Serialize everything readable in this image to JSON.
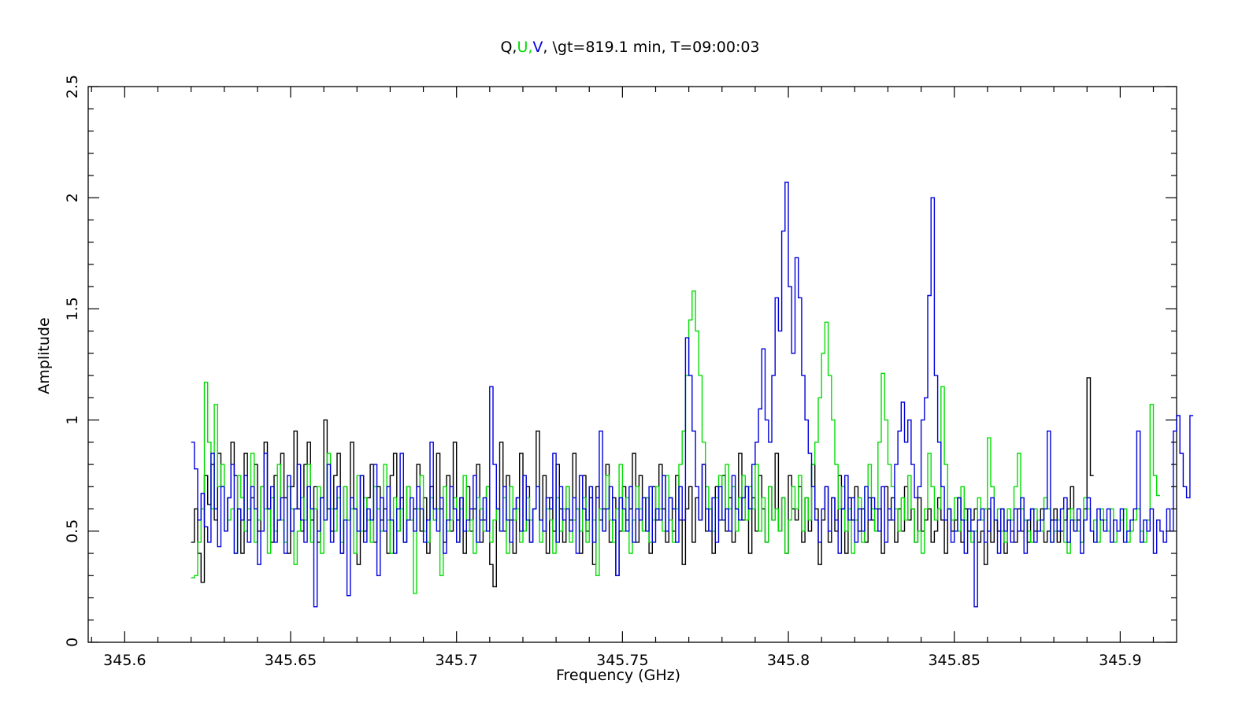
{
  "chart_data": {
    "type": "line",
    "title_parts": [
      {
        "text": "Q,",
        "color": "#000000"
      },
      {
        "text": "U,",
        "color": "#00dd00"
      },
      {
        "text": "V",
        "color": "#0000dd"
      },
      {
        "text": ", \\gt=819.1 min, T=09:00:03",
        "color": "#000000"
      }
    ],
    "xlabel": "Frequency (GHz)",
    "ylabel": "Amplitude",
    "xlim": [
      345.589,
      345.917
    ],
    "ylim": [
      0,
      2.5
    ],
    "x_ticks": [
      345.6,
      345.65,
      345.7,
      345.75,
      345.8,
      345.85,
      345.9
    ],
    "x_tick_labels": [
      "345.6",
      "345.65",
      "345.7",
      "345.75",
      "345.8",
      "345.85",
      "345.9"
    ],
    "y_ticks": [
      0,
      0.5,
      1,
      1.5,
      2,
      2.5
    ],
    "y_tick_labels": [
      "0",
      "0.5",
      "1",
      "1.5",
      "2",
      "2.5"
    ],
    "x_start": 345.62,
    "x_step": 0.001,
    "series": [
      {
        "name": "Q",
        "color": "#000000",
        "values": [
          0.45,
          0.6,
          0.4,
          0.27,
          0.75,
          0.62,
          0.8,
          0.55,
          0.85,
          0.7,
          0.5,
          0.65,
          0.9,
          0.75,
          0.6,
          0.4,
          0.85,
          0.55,
          0.65,
          0.8,
          0.5,
          0.7,
          0.9,
          0.6,
          0.45,
          0.75,
          0.55,
          0.85,
          0.65,
          0.4,
          0.7,
          0.95,
          0.6,
          0.5,
          0.8,
          0.9,
          0.55,
          0.7,
          0.45,
          0.65,
          1.0,
          0.6,
          0.5,
          0.75,
          0.85,
          0.4,
          0.7,
          0.55,
          0.9,
          0.6,
          0.35,
          0.75,
          0.5,
          0.65,
          0.8,
          0.45,
          0.7,
          0.55,
          0.6,
          0.4,
          0.75,
          0.85,
          0.5,
          0.65,
          0.45,
          0.7,
          0.55,
          0.6,
          0.8,
          0.5,
          0.65,
          0.4,
          0.7,
          0.55,
          0.85,
          0.6,
          0.45,
          0.75,
          0.5,
          0.9,
          0.55,
          0.65,
          0.4,
          0.7,
          0.5,
          0.6,
          0.8,
          0.45,
          0.55,
          0.7,
          0.35,
          0.25,
          0.6,
          0.9,
          0.5,
          0.75,
          0.55,
          0.4,
          0.65,
          0.85,
          0.5,
          0.7,
          0.45,
          0.6,
          0.95,
          0.55,
          0.75,
          0.4,
          0.65,
          0.5,
          0.8,
          0.6,
          0.45,
          0.7,
          0.55,
          0.85,
          0.6,
          0.4,
          0.75,
          0.5,
          0.65,
          0.35,
          0.7,
          0.55,
          0.6,
          0.8,
          0.45,
          0.65,
          0.3,
          0.5,
          0.7,
          0.55,
          0.6,
          0.85,
          0.45,
          0.75,
          0.5,
          0.65,
          0.4,
          0.7,
          0.55,
          0.8,
          0.6,
          0.45,
          0.65,
          0.5,
          0.75,
          0.55,
          0.35,
          0.6,
          0.7,
          0.45,
          0.65,
          0.55,
          0.8,
          0.5,
          0.6,
          0.4,
          0.7,
          0.55,
          0.75,
          0.5,
          0.65,
          0.45,
          0.6,
          0.85,
          0.55,
          0.7,
          0.4,
          0.65,
          0.5,
          0.75,
          0.6,
          0.45,
          0.7,
          0.55,
          0.85,
          0.5,
          0.65,
          0.4,
          0.75,
          0.6,
          0.55,
          0.7,
          0.45,
          0.65,
          0.5,
          0.8,
          0.6,
          0.35,
          0.55,
          0.7,
          0.45,
          0.65,
          0.5,
          0.75,
          0.6,
          0.4,
          0.65,
          0.55,
          0.7,
          0.5,
          0.6,
          0.45,
          0.65,
          0.55,
          0.5,
          0.6,
          0.4,
          0.7,
          0.55,
          0.65,
          0.45,
          0.6,
          0.5,
          0.7,
          0.55,
          0.6,
          0.45,
          0.65,
          0.5,
          0.55,
          0.6,
          0.45,
          0.5,
          0.65,
          0.55,
          0.4,
          0.6,
          0.5,
          0.55,
          0.65,
          0.45,
          0.6,
          0.5,
          0.55,
          0.6,
          0.45,
          0.5,
          0.35,
          0.6,
          0.45,
          0.55,
          0.5,
          0.6,
          0.4,
          0.55,
          0.5,
          0.45,
          0.6,
          0.5,
          0.55,
          0.45,
          0.6,
          0.5,
          0.55,
          0.6,
          0.45,
          0.5,
          0.55,
          0.6,
          0.45,
          0.5,
          0.55,
          0.6,
          0.7,
          0.5,
          0.55,
          0.45,
          0.6,
          1.19,
          0.75
        ]
      },
      {
        "name": "U",
        "color": "#00dd00",
        "values": [
          0.29,
          0.3,
          0.45,
          0.6,
          1.17,
          0.9,
          0.6,
          1.07,
          0.7,
          0.8,
          0.5,
          0.55,
          0.6,
          0.4,
          0.75,
          0.65,
          0.5,
          0.6,
          0.85,
          0.45,
          0.55,
          0.7,
          0.6,
          0.4,
          0.65,
          0.5,
          0.8,
          0.55,
          0.45,
          0.7,
          0.6,
          0.35,
          0.5,
          0.65,
          0.55,
          0.8,
          0.45,
          0.6,
          0.7,
          0.4,
          0.55,
          0.85,
          0.6,
          0.5,
          0.65,
          0.45,
          0.7,
          0.55,
          0.6,
          0.4,
          0.75,
          0.5,
          0.65,
          0.55,
          0.45,
          0.7,
          0.6,
          0.5,
          0.8,
          0.55,
          0.4,
          0.65,
          0.5,
          0.6,
          0.45,
          0.7,
          0.55,
          0.22,
          0.6,
          0.75,
          0.5,
          0.45,
          0.65,
          0.55,
          0.6,
          0.3,
          0.7,
          0.5,
          0.55,
          0.65,
          0.45,
          0.6,
          0.75,
          0.5,
          0.55,
          0.4,
          0.65,
          0.6,
          0.5,
          0.7,
          0.45,
          0.55,
          0.6,
          0.5,
          0.65,
          0.4,
          0.7,
          0.55,
          0.6,
          0.45,
          0.5,
          0.65,
          0.55,
          0.6,
          0.7,
          0.45,
          0.5,
          0.6,
          0.55,
          0.4,
          0.65,
          0.5,
          0.6,
          0.7,
          0.45,
          0.55,
          0.6,
          0.5,
          0.65,
          0.45,
          0.7,
          0.55,
          0.3,
          0.6,
          0.5,
          0.75,
          0.55,
          0.45,
          0.6,
          0.8,
          0.5,
          0.65,
          0.4,
          0.55,
          0.7,
          0.6,
          0.5,
          0.65,
          0.45,
          0.55,
          0.7,
          0.6,
          0.5,
          0.75,
          0.55,
          0.45,
          0.6,
          0.8,
          0.95,
          1.2,
          1.45,
          1.58,
          1.4,
          1.2,
          0.9,
          0.7,
          0.6,
          0.5,
          0.65,
          0.75,
          0.55,
          0.8,
          0.6,
          0.7,
          0.5,
          0.65,
          0.75,
          0.55,
          0.7,
          0.6,
          0.8,
          0.5,
          0.65,
          0.45,
          0.7,
          0.55,
          0.6,
          0.5,
          0.65,
          0.4,
          0.55,
          0.7,
          0.6,
          0.75,
          0.5,
          0.65,
          0.55,
          0.8,
          0.9,
          1.1,
          1.3,
          1.44,
          1.2,
          1.0,
          0.8,
          0.6,
          0.7,
          0.5,
          0.6,
          0.4,
          0.55,
          0.65,
          0.45,
          0.7,
          0.8,
          0.6,
          0.5,
          0.9,
          1.21,
          1.0,
          0.8,
          0.7,
          0.6,
          0.5,
          0.65,
          0.55,
          0.75,
          0.6,
          0.45,
          0.5,
          0.4,
          0.6,
          0.85,
          0.7,
          0.55,
          0.6,
          1.15,
          0.8,
          0.6,
          0.55,
          0.65,
          0.5,
          0.7,
          0.55,
          0.6,
          0.45,
          0.5,
          0.65,
          0.55,
          0.6,
          0.92,
          0.7,
          0.55,
          0.6,
          0.5,
          0.45,
          0.6,
          0.55,
          0.7,
          0.85,
          0.6,
          0.55,
          0.5,
          0.45,
          0.6,
          0.55,
          0.5,
          0.65,
          0.6,
          0.45,
          0.5,
          0.55,
          0.6,
          0.45,
          0.4,
          0.6,
          0.55,
          0.5,
          0.45,
          0.65,
          0.6,
          0.5,
          0.55,
          0.45,
          0.6,
          0.55,
          0.5,
          0.6,
          0.45,
          0.5,
          0.55,
          0.6,
          0.45,
          0.5,
          0.55,
          0.6,
          0.5,
          0.45,
          0.55,
          1.07,
          0.75,
          0.66
        ]
      },
      {
        "name": "V",
        "color": "#0000dd",
        "values": [
          0.9,
          0.78,
          0.55,
          0.67,
          0.52,
          0.45,
          0.85,
          0.6,
          0.43,
          0.7,
          0.5,
          0.65,
          0.8,
          0.4,
          0.6,
          0.55,
          0.75,
          0.45,
          0.7,
          0.6,
          0.35,
          0.5,
          0.85,
          0.6,
          0.7,
          0.45,
          0.55,
          0.65,
          0.4,
          0.75,
          0.5,
          0.6,
          0.8,
          0.55,
          0.45,
          0.7,
          0.6,
          0.16,
          0.5,
          0.65,
          0.55,
          0.8,
          0.45,
          0.6,
          0.7,
          0.4,
          0.55,
          0.21,
          0.65,
          0.6,
          0.5,
          0.75,
          0.45,
          0.6,
          0.55,
          0.8,
          0.3,
          0.65,
          0.5,
          0.7,
          0.55,
          0.4,
          0.6,
          0.85,
          0.45,
          0.55,
          0.65,
          0.5,
          0.7,
          0.6,
          0.45,
          0.55,
          0.9,
          0.6,
          0.5,
          0.65,
          0.4,
          0.55,
          0.7,
          0.6,
          0.45,
          0.65,
          0.5,
          0.55,
          0.6,
          0.75,
          0.45,
          0.55,
          0.65,
          0.5,
          1.15,
          0.8,
          0.6,
          0.5,
          0.7,
          0.55,
          0.45,
          0.6,
          0.65,
          0.5,
          0.75,
          0.55,
          0.45,
          0.6,
          0.7,
          0.55,
          0.5,
          0.65,
          0.6,
          0.85,
          0.45,
          0.7,
          0.55,
          0.6,
          0.5,
          0.65,
          0.4,
          0.75,
          0.6,
          0.55,
          0.7,
          0.45,
          0.65,
          0.95,
          0.5,
          0.6,
          0.7,
          0.55,
          0.3,
          0.65,
          0.6,
          0.5,
          0.7,
          0.45,
          0.6,
          0.55,
          0.65,
          0.5,
          0.7,
          0.45,
          0.6,
          0.55,
          0.75,
          0.5,
          0.65,
          0.6,
          0.45,
          0.7,
          0.55,
          1.37,
          1.2,
          0.95,
          0.7,
          0.55,
          0.8,
          0.6,
          0.5,
          0.65,
          0.45,
          0.7,
          0.55,
          0.6,
          0.5,
          0.75,
          0.6,
          0.55,
          0.65,
          0.7,
          0.6,
          0.8,
          0.9,
          1.05,
          1.32,
          1.0,
          0.9,
          1.2,
          1.55,
          1.4,
          1.85,
          2.07,
          1.6,
          1.3,
          1.73,
          1.55,
          1.2,
          1.0,
          0.85,
          0.7,
          0.55,
          0.45,
          0.6,
          0.7,
          0.5,
          0.65,
          0.55,
          0.4,
          0.6,
          0.75,
          0.55,
          0.65,
          0.45,
          0.6,
          0.5,
          0.7,
          0.55,
          0.65,
          0.6,
          0.5,
          0.7,
          0.45,
          0.6,
          0.55,
          0.8,
          0.95,
          1.08,
          0.9,
          1.0,
          0.8,
          0.65,
          0.7,
          1.0,
          1.1,
          1.56,
          2.0,
          1.2,
          0.9,
          0.7,
          0.55,
          0.6,
          0.45,
          0.5,
          0.65,
          0.55,
          0.4,
          0.6,
          0.5,
          0.16,
          0.55,
          0.6,
          0.45,
          0.5,
          0.65,
          0.55,
          0.4,
          0.6,
          0.5,
          0.55,
          0.45,
          0.6,
          0.5,
          0.65,
          0.4,
          0.55,
          0.6,
          0.45,
          0.5,
          0.55,
          0.6,
          0.95,
          0.45,
          0.55,
          0.5,
          0.6,
          0.65,
          0.45,
          0.55,
          0.5,
          0.6,
          0.4,
          0.55,
          0.65,
          0.5,
          0.45,
          0.6,
          0.55,
          0.5,
          0.6,
          0.45,
          0.55,
          0.5,
          0.6,
          0.45,
          0.5,
          0.55,
          0.6,
          0.95,
          0.45,
          0.55,
          0.5,
          0.6,
          0.4,
          0.55,
          0.5,
          0.45,
          0.6,
          0.5,
          0.95,
          1.02,
          0.85,
          0.7,
          0.65,
          1.02
        ]
      }
    ]
  }
}
